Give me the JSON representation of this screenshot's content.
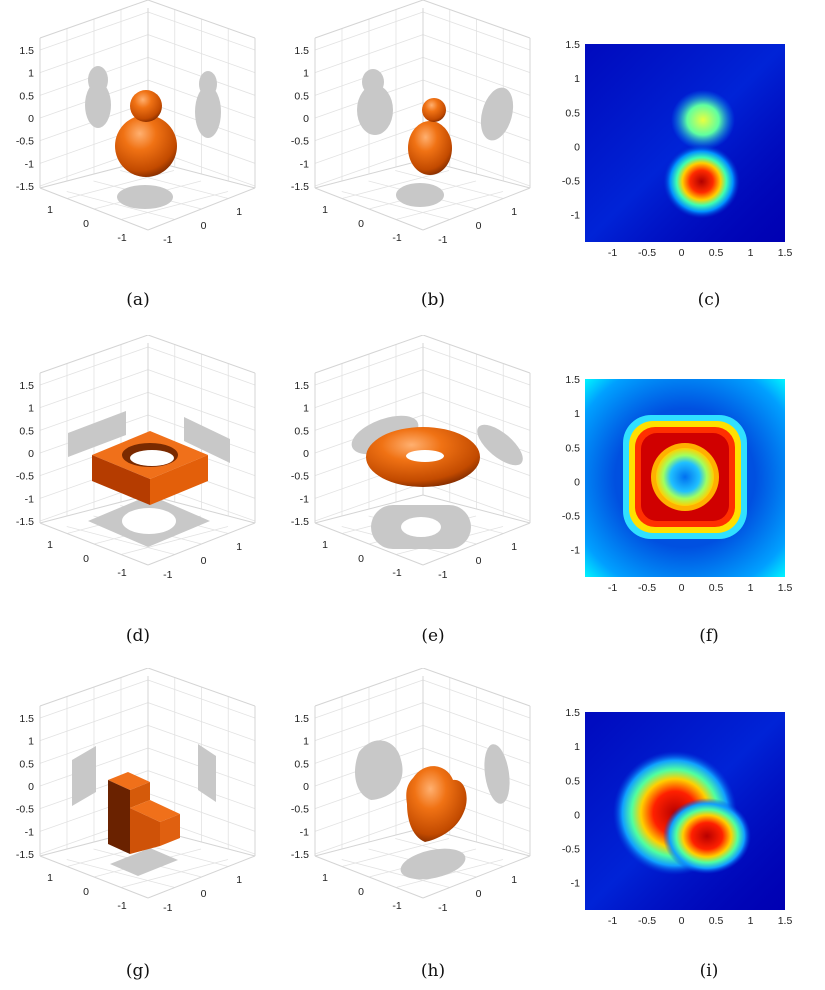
{
  "figure": {
    "captions": [
      "(a)",
      "(b)",
      "(c)",
      "(d)",
      "(e)",
      "(f)",
      "(g)",
      "(h)",
      "(i)"
    ],
    "axis3d_z_ticks": [
      "1.5",
      "1",
      "0.5",
      "0",
      "-0.5",
      "-1",
      "-1.5"
    ],
    "axis3d_left_ticks": [
      "1",
      "0",
      "-1"
    ],
    "axis3d_right_ticks": [
      "1",
      "0",
      "-1"
    ],
    "heatmap_x_ticks": [
      "-1",
      "-0.5",
      "0",
      "0.5",
      "1",
      "1.5"
    ],
    "heatmap_y_ticks": [
      "1.5",
      "1",
      "0.5",
      "0",
      "-0.5",
      "-1"
    ],
    "colors": {
      "shape": "#e8660f",
      "shadow": "#c8c8c8",
      "grid": "#e2e2e2"
    },
    "colormap": "jet"
  }
}
